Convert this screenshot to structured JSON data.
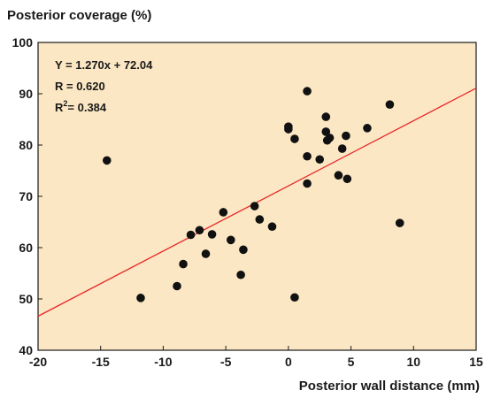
{
  "chart_data": {
    "type": "scatter",
    "ylabel": "Posterior coverage (%)",
    "xlabel": "Posterior wall distance (mm)",
    "xlim": [
      -20,
      15
    ],
    "ylim": [
      40,
      100
    ],
    "xticks": [
      -20,
      -15,
      -10,
      -5,
      0,
      5,
      10,
      15
    ],
    "yticks": [
      40,
      50,
      60,
      70,
      80,
      90,
      100
    ],
    "grid": false,
    "colors": {
      "background": "#fbe7c3",
      "points": "#111111",
      "fit_line": "#e8262b"
    },
    "annotations": {
      "equation": "Y = 1.270x + 72.04",
      "r": "R = 0.620",
      "r2_prefix": "R",
      "r2_exp": "2",
      "r2_value": "= 0.384"
    },
    "fit": {
      "slope": 1.27,
      "intercept": 72.04
    },
    "points": [
      {
        "x": -14.5,
        "y": 77.0
      },
      {
        "x": -11.8,
        "y": 50.2
      },
      {
        "x": -8.9,
        "y": 52.5
      },
      {
        "x": -8.4,
        "y": 56.8
      },
      {
        "x": -7.8,
        "y": 62.5
      },
      {
        "x": -7.1,
        "y": 63.4
      },
      {
        "x": -6.6,
        "y": 58.8
      },
      {
        "x": -6.1,
        "y": 62.6
      },
      {
        "x": -5.2,
        "y": 66.9
      },
      {
        "x": -4.6,
        "y": 61.5
      },
      {
        "x": -3.8,
        "y": 54.7
      },
      {
        "x": -3.6,
        "y": 59.6
      },
      {
        "x": -2.7,
        "y": 68.1
      },
      {
        "x": -2.3,
        "y": 65.5
      },
      {
        "x": -1.3,
        "y": 64.1
      },
      {
        "x": 0.0,
        "y": 83.6
      },
      {
        "x": 0.0,
        "y": 83.1
      },
      {
        "x": 0.5,
        "y": 81.2
      },
      {
        "x": 0.5,
        "y": 50.3
      },
      {
        "x": 1.5,
        "y": 90.5
      },
      {
        "x": 1.5,
        "y": 77.8
      },
      {
        "x": 1.5,
        "y": 72.5
      },
      {
        "x": 2.5,
        "y": 77.2
      },
      {
        "x": 3.0,
        "y": 85.5
      },
      {
        "x": 3.0,
        "y": 82.6
      },
      {
        "x": 3.1,
        "y": 80.9
      },
      {
        "x": 3.3,
        "y": 81.4
      },
      {
        "x": 4.0,
        "y": 74.1
      },
      {
        "x": 4.3,
        "y": 79.3
      },
      {
        "x": 4.6,
        "y": 81.8
      },
      {
        "x": 4.7,
        "y": 73.4
      },
      {
        "x": 6.3,
        "y": 83.3
      },
      {
        "x": 8.1,
        "y": 87.9
      },
      {
        "x": 8.9,
        "y": 64.8
      }
    ]
  }
}
